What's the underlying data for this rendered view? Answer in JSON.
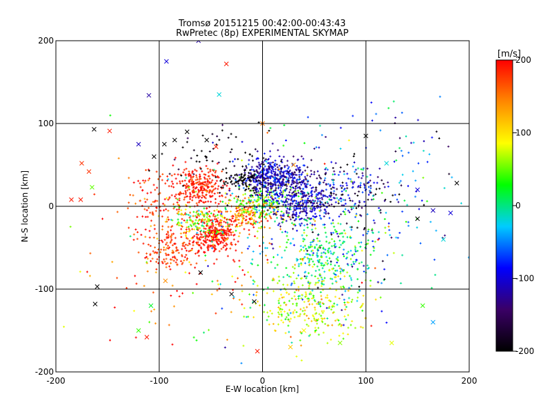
{
  "chart_data": {
    "type": "scatter",
    "title": "Tromsø 20151215 00:42:00-00:43:43",
    "subtitle": "RwPretec (8p) EXPERIMENTAL SKYMAP",
    "xlabel": "E-W location [km]",
    "ylabel": "N-S location [km]",
    "xlim": [
      -200,
      200
    ],
    "ylim": [
      -200,
      200
    ],
    "xticks": [
      "-200",
      "-100",
      "0",
      "100",
      "200"
    ],
    "yticks": [
      "-200",
      "-100",
      "0",
      "100",
      "200"
    ],
    "grid": true,
    "colorbar": {
      "label": "[m/s]",
      "range": [
        -200,
        200
      ],
      "ticks": [
        "200",
        "100",
        "0",
        "-100",
        "-200"
      ],
      "colormap": [
        "#000000",
        "#3a0066",
        "#0000ff",
        "#00ccff",
        "#00ff00",
        "#ffff00",
        "#ff8800",
        "#ff0000"
      ]
    },
    "clusters": [
      {
        "cx": -60,
        "cy": 25,
        "sx": 12,
        "sy": 12,
        "n": 260,
        "v": 190,
        "vs": 15
      },
      {
        "cx": -100,
        "cy": 10,
        "sx": 15,
        "sy": 15,
        "n": 90,
        "v": 180,
        "vs": 20
      },
      {
        "cx": -90,
        "cy": -50,
        "sx": 15,
        "sy": 15,
        "n": 160,
        "v": 180,
        "vs": 20
      },
      {
        "cx": -45,
        "cy": -35,
        "sx": 10,
        "sy": 12,
        "n": 280,
        "v": 195,
        "vs": 10
      },
      {
        "cx": -60,
        "cy": -20,
        "sx": 15,
        "sy": 10,
        "n": 140,
        "v": 60,
        "vs": 50
      },
      {
        "cx": -15,
        "cy": -10,
        "sx": 15,
        "sy": 10,
        "n": 200,
        "v": 150,
        "vs": 40
      },
      {
        "cx": 0,
        "cy": 5,
        "sx": 15,
        "sy": 12,
        "n": 180,
        "v": 40,
        "vs": 40
      },
      {
        "cx": 10,
        "cy": 35,
        "sx": 15,
        "sy": 12,
        "n": 420,
        "v": -110,
        "vs": 30
      },
      {
        "cx": -20,
        "cy": 30,
        "sx": 10,
        "sy": 8,
        "n": 90,
        "v": -200,
        "vs": 10
      },
      {
        "cx": 40,
        "cy": 5,
        "sx": 15,
        "sy": 15,
        "n": 300,
        "v": -110,
        "vs": 25
      },
      {
        "cx": 70,
        "cy": 20,
        "sx": 30,
        "sy": 20,
        "n": 220,
        "v": -120,
        "vs": 60
      },
      {
        "cx": 60,
        "cy": -60,
        "sx": 25,
        "sy": 25,
        "n": 300,
        "v": 0,
        "vs": 45
      },
      {
        "cx": 50,
        "cy": -120,
        "sx": 25,
        "sy": 20,
        "n": 260,
        "v": 80,
        "vs": 30
      },
      {
        "cx": -40,
        "cy": 60,
        "sx": 30,
        "sy": 20,
        "n": 60,
        "v": -200,
        "vs": 40
      },
      {
        "cx": 100,
        "cy": 0,
        "sx": 50,
        "sy": 60,
        "n": 180,
        "v": -80,
        "vs": 80
      },
      {
        "cx": -80,
        "cy": -60,
        "sx": 60,
        "sy": 60,
        "n": 120,
        "v": 160,
        "vs": 60
      },
      {
        "cx": 30,
        "cy": -60,
        "sx": 50,
        "sy": 60,
        "n": 150,
        "v": 20,
        "vs": 80
      }
    ],
    "crosses": [
      {
        "x": -163,
        "y": 93,
        "v": -200
      },
      {
        "x": -148,
        "y": 91,
        "v": 190
      },
      {
        "x": -175,
        "y": 52,
        "v": 180
      },
      {
        "x": -168,
        "y": 42,
        "v": 180
      },
      {
        "x": -165,
        "y": 23,
        "v": 50
      },
      {
        "x": -185,
        "y": 8,
        "v": 190
      },
      {
        "x": -176,
        "y": 8,
        "v": 190
      },
      {
        "x": -160,
        "y": -97,
        "v": -200
      },
      {
        "x": -162,
        "y": -118,
        "v": -200
      },
      {
        "x": -112,
        "y": -158,
        "v": 190
      },
      {
        "x": -120,
        "y": -150,
        "v": 40
      },
      {
        "x": -108,
        "y": -120,
        "v": 20
      },
      {
        "x": -93,
        "y": 175,
        "v": -100
      },
      {
        "x": -35,
        "y": 172,
        "v": 190
      },
      {
        "x": -62,
        "y": 200,
        "v": -120
      },
      {
        "x": -42,
        "y": 135,
        "v": -20
      },
      {
        "x": -110,
        "y": 134,
        "v": -120
      },
      {
        "x": -120,
        "y": 75,
        "v": -110
      },
      {
        "x": -105,
        "y": 60,
        "v": -200
      },
      {
        "x": -95,
        "y": 75,
        "v": -200
      },
      {
        "x": -85,
        "y": 80,
        "v": -200
      },
      {
        "x": -73,
        "y": 90,
        "v": -200
      },
      {
        "x": -54,
        "y": 80,
        "v": -200
      },
      {
        "x": -45,
        "y": 72,
        "v": 190
      },
      {
        "x": -94,
        "y": -90,
        "v": 140
      },
      {
        "x": -60,
        "y": -80,
        "v": -200
      },
      {
        "x": -30,
        "y": -106,
        "v": -200
      },
      {
        "x": -8,
        "y": -115,
        "v": -200
      },
      {
        "x": -5,
        "y": -175,
        "v": 190
      },
      {
        "x": 100,
        "y": 85,
        "v": -200
      },
      {
        "x": 120,
        "y": 52,
        "v": -20
      },
      {
        "x": 150,
        "y": 20,
        "v": -100
      },
      {
        "x": 165,
        "y": -5,
        "v": -110
      },
      {
        "x": 182,
        "y": -8,
        "v": -100
      },
      {
        "x": 175,
        "y": -40,
        "v": -20
      },
      {
        "x": 150,
        "y": -15,
        "v": -200
      },
      {
        "x": 155,
        "y": -120,
        "v": 40
      },
      {
        "x": 165,
        "y": -140,
        "v": -40
      },
      {
        "x": 188,
        "y": 28,
        "v": -200
      },
      {
        "x": 75,
        "y": -165,
        "v": 60
      },
      {
        "x": 40,
        "y": -150,
        "v": 90
      },
      {
        "x": 27,
        "y": -170,
        "v": 110
      },
      {
        "x": 125,
        "y": -165,
        "v": 80
      },
      {
        "x": 30,
        "y": 50,
        "v": 140
      },
      {
        "x": 0,
        "y": 100,
        "v": 150
      }
    ]
  }
}
